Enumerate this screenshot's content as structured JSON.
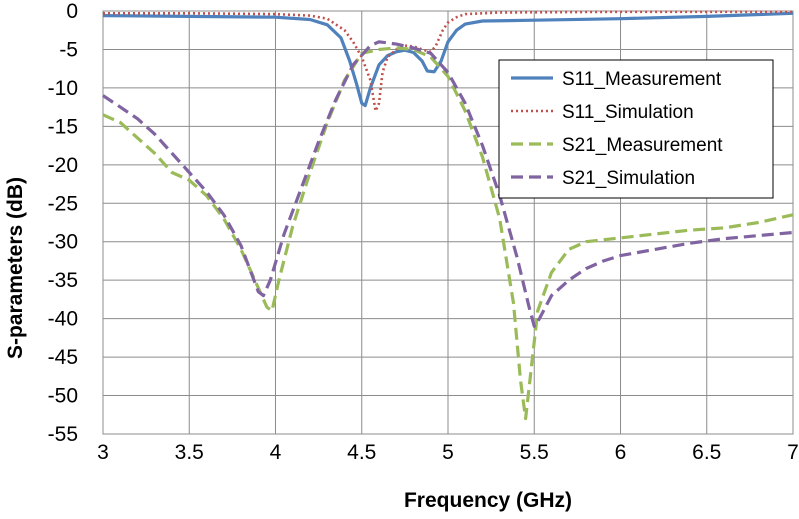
{
  "chart_data": {
    "type": "line",
    "title": "",
    "xlabel": "Frequency (GHz)",
    "ylabel": "S-parameters (dB)",
    "xlim": [
      3,
      7
    ],
    "ylim": [
      -55,
      0
    ],
    "x_ticks": [
      3,
      3.5,
      4,
      4.5,
      5,
      5.5,
      6,
      6.5,
      7
    ],
    "y_ticks": [
      0,
      -5,
      -10,
      -15,
      -20,
      -25,
      -30,
      -35,
      -40,
      -45,
      -50,
      -55
    ],
    "grid": true,
    "legend_position": "right",
    "series": [
      {
        "name": "S11_Measurement",
        "color": "#4f81bd",
        "style": "solid",
        "points": [
          [
            3.0,
            -0.6
          ],
          [
            3.5,
            -0.7
          ],
          [
            4.0,
            -0.8
          ],
          [
            4.2,
            -1.1
          ],
          [
            4.3,
            -1.8
          ],
          [
            4.38,
            -3.5
          ],
          [
            4.43,
            -6.5
          ],
          [
            4.47,
            -9.5
          ],
          [
            4.5,
            -12.0
          ],
          [
            4.52,
            -12.3
          ],
          [
            4.55,
            -10.0
          ],
          [
            4.6,
            -7.0
          ],
          [
            4.65,
            -5.8
          ],
          [
            4.7,
            -5.3
          ],
          [
            4.75,
            -5.1
          ],
          [
            4.8,
            -5.4
          ],
          [
            4.85,
            -6.5
          ],
          [
            4.88,
            -7.8
          ],
          [
            4.92,
            -7.9
          ],
          [
            4.96,
            -6.5
          ],
          [
            5.0,
            -4.0
          ],
          [
            5.05,
            -2.5
          ],
          [
            5.1,
            -1.7
          ],
          [
            5.2,
            -1.3
          ],
          [
            5.5,
            -1.2
          ],
          [
            6.0,
            -1.0
          ],
          [
            6.5,
            -0.7
          ],
          [
            7.0,
            -0.3
          ]
        ]
      },
      {
        "name": "S11_Simulation",
        "color": "#c0504d",
        "style": "dotted",
        "points": [
          [
            3.0,
            -0.3
          ],
          [
            3.5,
            -0.3
          ],
          [
            4.0,
            -0.4
          ],
          [
            4.2,
            -0.6
          ],
          [
            4.3,
            -1.0
          ],
          [
            4.4,
            -2.5
          ],
          [
            4.45,
            -4.0
          ],
          [
            4.5,
            -6.0
          ],
          [
            4.55,
            -9.0
          ],
          [
            4.58,
            -13.0
          ],
          [
            4.6,
            -12.0
          ],
          [
            4.62,
            -8.0
          ],
          [
            4.65,
            -6.0
          ],
          [
            4.7,
            -5.0
          ],
          [
            4.75,
            -4.5
          ],
          [
            4.8,
            -4.6
          ],
          [
            4.85,
            -5.0
          ],
          [
            4.9,
            -5.3
          ],
          [
            4.93,
            -4.5
          ],
          [
            4.97,
            -2.5
          ],
          [
            5.0,
            -1.5
          ],
          [
            5.05,
            -0.8
          ],
          [
            5.1,
            -0.4
          ],
          [
            5.3,
            -0.2
          ],
          [
            6.0,
            -0.1
          ],
          [
            7.0,
            -0.1
          ]
        ]
      },
      {
        "name": "S21_Measurement",
        "color": "#9bbb59",
        "style": "dashed",
        "points": [
          [
            3.0,
            -13.5
          ],
          [
            3.1,
            -14.5
          ],
          [
            3.2,
            -16.5
          ],
          [
            3.3,
            -18.5
          ],
          [
            3.4,
            -21.0
          ],
          [
            3.5,
            -22.0
          ],
          [
            3.6,
            -24.0
          ],
          [
            3.7,
            -27.0
          ],
          [
            3.8,
            -31.0
          ],
          [
            3.9,
            -36.0
          ],
          [
            3.95,
            -38.5
          ],
          [
            3.98,
            -39.0
          ],
          [
            4.02,
            -35.0
          ],
          [
            4.1,
            -28.0
          ],
          [
            4.2,
            -21.0
          ],
          [
            4.3,
            -14.5
          ],
          [
            4.4,
            -9.0
          ],
          [
            4.5,
            -5.5
          ],
          [
            4.6,
            -5.0
          ],
          [
            4.7,
            -4.8
          ],
          [
            4.8,
            -5.0
          ],
          [
            4.9,
            -6.0
          ],
          [
            5.0,
            -8.5
          ],
          [
            5.1,
            -13.0
          ],
          [
            5.2,
            -19.0
          ],
          [
            5.3,
            -27.0
          ],
          [
            5.38,
            -38.0
          ],
          [
            5.42,
            -48.0
          ],
          [
            5.45,
            -53.0
          ],
          [
            5.48,
            -47.0
          ],
          [
            5.52,
            -39.0
          ],
          [
            5.6,
            -34.0
          ],
          [
            5.7,
            -31.0
          ],
          [
            5.8,
            -30.0
          ],
          [
            6.0,
            -29.5
          ],
          [
            6.2,
            -29.0
          ],
          [
            6.4,
            -28.5
          ],
          [
            6.6,
            -28.2
          ],
          [
            6.8,
            -27.5
          ],
          [
            7.0,
            -26.5
          ]
        ]
      },
      {
        "name": "S21_Simulation",
        "color": "#8064a2",
        "style": "dashed",
        "points": [
          [
            3.0,
            -11.0
          ],
          [
            3.1,
            -12.5
          ],
          [
            3.2,
            -14.0
          ],
          [
            3.3,
            -16.0
          ],
          [
            3.4,
            -18.5
          ],
          [
            3.5,
            -21.0
          ],
          [
            3.6,
            -23.5
          ],
          [
            3.7,
            -26.5
          ],
          [
            3.8,
            -30.5
          ],
          [
            3.85,
            -33.5
          ],
          [
            3.9,
            -36.5
          ],
          [
            3.93,
            -37.0
          ],
          [
            3.97,
            -35.0
          ],
          [
            4.05,
            -29.0
          ],
          [
            4.15,
            -23.0
          ],
          [
            4.25,
            -17.0
          ],
          [
            4.35,
            -11.5
          ],
          [
            4.45,
            -7.0
          ],
          [
            4.55,
            -4.5
          ],
          [
            4.6,
            -4.0
          ],
          [
            4.7,
            -4.3
          ],
          [
            4.8,
            -4.8
          ],
          [
            4.9,
            -5.5
          ],
          [
            5.0,
            -8.0
          ],
          [
            5.1,
            -12.0
          ],
          [
            5.2,
            -17.5
          ],
          [
            5.3,
            -24.0
          ],
          [
            5.4,
            -32.0
          ],
          [
            5.47,
            -38.5
          ],
          [
            5.5,
            -41.0
          ],
          [
            5.53,
            -40.0
          ],
          [
            5.6,
            -37.0
          ],
          [
            5.7,
            -35.0
          ],
          [
            5.8,
            -33.5
          ],
          [
            5.9,
            -32.5
          ],
          [
            6.0,
            -31.8
          ],
          [
            6.2,
            -31.0
          ],
          [
            6.4,
            -30.2
          ],
          [
            6.6,
            -29.6
          ],
          [
            6.8,
            -29.2
          ],
          [
            7.0,
            -28.8
          ]
        ]
      }
    ]
  }
}
